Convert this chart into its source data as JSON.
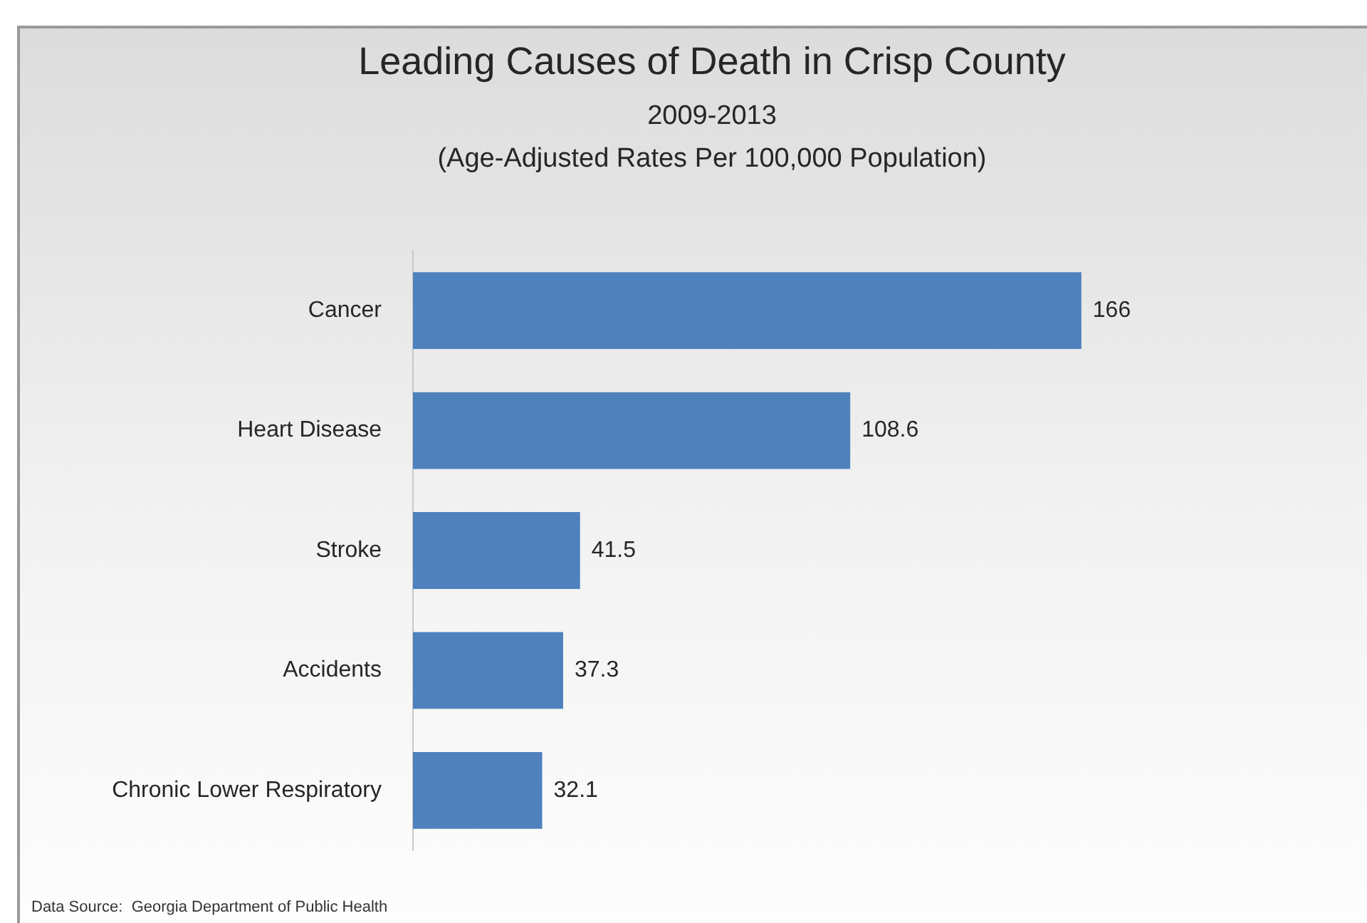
{
  "chart_data": {
    "type": "bar",
    "orientation": "horizontal",
    "title": "Leading Causes of Death in Crisp County",
    "subtitle": "2009-2013\n(Age-Adjusted Rates Per 100,000 Population)",
    "categories": [
      "Cancer",
      "Heart Disease",
      "Stroke",
      "Accidents",
      "Chronic Lower Respiratory"
    ],
    "values": [
      166,
      108.6,
      41.5,
      37.3,
      32.1
    ],
    "color": "#4f81bd",
    "data_labels": true,
    "grid": false,
    "legend": false,
    "tick_labels": "y",
    "annotations": [
      "Data Source:  Georgia Department of Public Health"
    ]
  }
}
